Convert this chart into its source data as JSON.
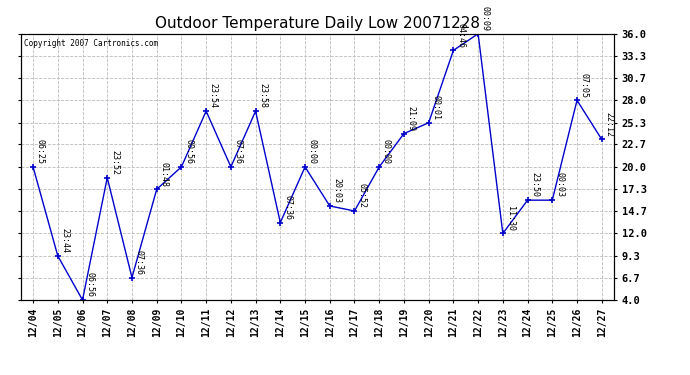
{
  "title": "Outdoor Temperature Daily Low 20071228",
  "copyright": "Copyright 2007 Cartronics.com",
  "line_color": "#0000cc",
  "marker_color": "#0000cc",
  "background_color": "#ffffff",
  "grid_color": "#bbbbbb",
  "x_labels": [
    "12/04",
    "12/05",
    "12/06",
    "12/07",
    "12/08",
    "12/09",
    "12/10",
    "12/11",
    "12/12",
    "12/13",
    "12/14",
    "12/15",
    "12/16",
    "12/17",
    "12/18",
    "12/19",
    "12/20",
    "12/21",
    "12/22",
    "12/23",
    "12/24",
    "12/25",
    "12/26",
    "12/27"
  ],
  "y_values": [
    20.0,
    9.3,
    4.0,
    18.7,
    6.7,
    17.3,
    20.0,
    26.7,
    20.0,
    26.7,
    13.3,
    20.0,
    15.3,
    14.7,
    20.0,
    24.0,
    25.3,
    34.0,
    36.0,
    12.0,
    16.0,
    16.0,
    28.0,
    23.3
  ],
  "annotations": [
    "06:25",
    "23:44",
    "06:56",
    "23:52",
    "07:36",
    "01:48",
    "00:56",
    "23:54",
    "07:36",
    "23:58",
    "07:36",
    "00:00",
    "20:03",
    "05:52",
    "00:00",
    "21:09",
    "00:01",
    "04:46",
    "00:09",
    "11:30",
    "23:50",
    "00:03",
    "07:05",
    "22:12"
  ],
  "ylim": [
    4.0,
    36.0
  ],
  "yticks": [
    4.0,
    6.7,
    9.3,
    12.0,
    14.7,
    17.3,
    20.0,
    22.7,
    25.3,
    28.0,
    30.7,
    33.3,
    36.0
  ],
  "title_fontsize": 11,
  "annotation_fontsize": 6.0,
  "ylabel_fontsize": 7.5,
  "xlabel_fontsize": 7.0,
  "copyright_fontsize": 5.5
}
